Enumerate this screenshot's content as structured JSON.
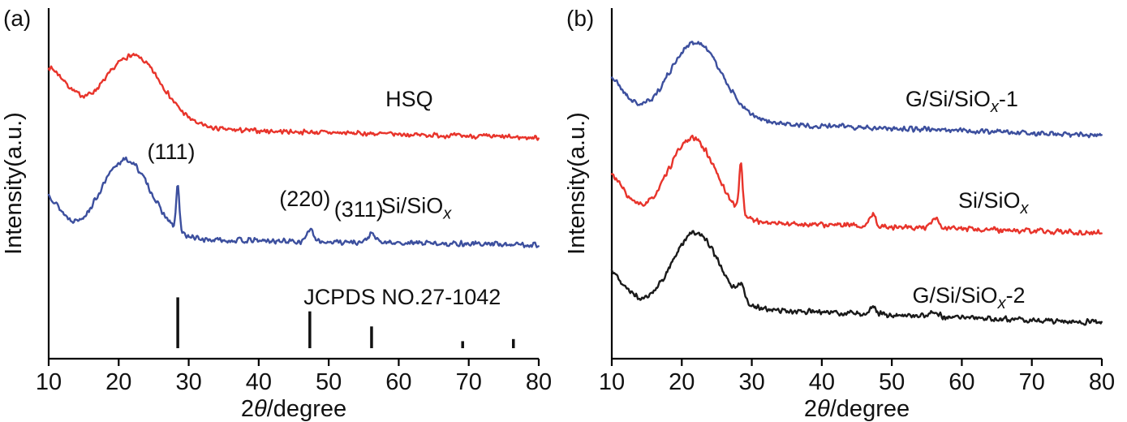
{
  "chart_data": [
    {
      "type": "line",
      "panel_label": "(a)",
      "xlabel_parts": [
        {
          "t": "2"
        },
        {
          "t": "θ",
          "italic": true
        },
        {
          "t": "/degree"
        }
      ],
      "ylabel": "Intensity(a.u.)",
      "xlim": [
        10,
        80
      ],
      "xticks": [
        10,
        20,
        30,
        40,
        50,
        60,
        70,
        80
      ],
      "grid": false,
      "axis_color": "#000000",
      "series": [
        {
          "name": "HSQ",
          "color": "#e8342b",
          "base": 0.665,
          "slope": -0.035,
          "noise": 0.008,
          "seed": 7,
          "peaks": [
            {
              "center": 9.5,
              "width": 3.2,
              "amp": 0.165
            },
            {
              "center": 22.0,
              "width": 4.2,
              "amp": 0.205
            }
          ],
          "label": {
            "parts": [
              {
                "t": "HSQ"
              }
            ],
            "x": 61.5,
            "y": 0.72
          }
        },
        {
          "name": "Si/SiOx",
          "color": "#3c4f9e",
          "base": 0.345,
          "slope": -0.02,
          "noise": 0.009,
          "seed": 13,
          "peaks": [
            {
              "center": 9.0,
              "width": 2.5,
              "amp": 0.13
            },
            {
              "center": 21.0,
              "width": 3.6,
              "amp": 0.225
            },
            {
              "center": 28.44,
              "width": 0.22,
              "amp": 0.13
            },
            {
              "center": 47.3,
              "width": 0.45,
              "amp": 0.034
            },
            {
              "center": 56.12,
              "width": 0.5,
              "amp": 0.024
            }
          ],
          "label": {
            "parts": [
              {
                "t": "Si/SiO"
              },
              {
                "t": "x",
                "sub": true
              }
            ],
            "x": 62.5,
            "y": 0.415
          }
        }
      ],
      "annotations": [
        {
          "text": "(111)",
          "x": 27.5,
          "y": 0.57
        },
        {
          "text": "(220)",
          "x": 46.6,
          "y": 0.435
        },
        {
          "text": "(311)",
          "x": 54.3,
          "y": 0.405
        }
      ],
      "reference": {
        "label": "JCPDS NO.27-1042",
        "label_x": 60.5,
        "label_y": 0.155,
        "color": "#111111",
        "sticks": [
          {
            "x": 28.44,
            "h": 0.145
          },
          {
            "x": 47.3,
            "h": 0.105
          },
          {
            "x": 56.12,
            "h": 0.062
          },
          {
            "x": 69.13,
            "h": 0.02
          },
          {
            "x": 76.38,
            "h": 0.026
          }
        ]
      }
    },
    {
      "type": "line",
      "panel_label": "(b)",
      "xlabel_parts": [
        {
          "t": "2"
        },
        {
          "t": "θ",
          "italic": true
        },
        {
          "t": "/degree"
        }
      ],
      "ylabel": "Intensity(a.u.)",
      "xlim": [
        10,
        80
      ],
      "xticks": [
        10,
        20,
        30,
        40,
        50,
        60,
        70,
        80
      ],
      "grid": false,
      "axis_color": "#000000",
      "series": [
        {
          "name": "G/Si/SiOx-1",
          "color": "#3c4f9e",
          "base": 0.685,
          "slope": -0.048,
          "noise": 0.009,
          "seed": 21,
          "peaks": [
            {
              "center": 9.0,
              "width": 2.6,
              "amp": 0.125
            },
            {
              "center": 22.0,
              "width": 3.8,
              "amp": 0.225
            }
          ],
          "label": {
            "parts": [
              {
                "t": "G/Si/SiO"
              },
              {
                "t": "x",
                "sub": true
              },
              {
                "t": "-1"
              }
            ],
            "x": 60.0,
            "y": 0.72
          }
        },
        {
          "name": "Si/SiOx",
          "color": "#e8342b",
          "base": 0.4,
          "slope": -0.042,
          "noise": 0.009,
          "seed": 33,
          "peaks": [
            {
              "center": 9.0,
              "width": 2.6,
              "amp": 0.135
            },
            {
              "center": 21.5,
              "width": 3.4,
              "amp": 0.235
            },
            {
              "center": 28.44,
              "width": 0.25,
              "amp": 0.14
            },
            {
              "center": 47.3,
              "width": 0.4,
              "amp": 0.036
            },
            {
              "center": 56.2,
              "width": 0.45,
              "amp": 0.028
            }
          ],
          "label": {
            "parts": [
              {
                "t": "Si/SiO"
              },
              {
                "t": "x",
                "sub": true
              }
            ],
            "x": 64.5,
            "y": 0.43
          }
        },
        {
          "name": "G/Si/SiOx-2",
          "color": "#1a1a1a",
          "base": 0.155,
          "slope": -0.052,
          "noise": 0.009,
          "seed": 47,
          "peaks": [
            {
              "center": 9.0,
              "width": 2.4,
              "amp": 0.105
            },
            {
              "center": 22.0,
              "width": 3.3,
              "amp": 0.215
            },
            {
              "center": 28.5,
              "width": 0.5,
              "amp": 0.04
            },
            {
              "center": 47.3,
              "width": 0.4,
              "amp": 0.026
            },
            {
              "center": 56.1,
              "width": 0.5,
              "amp": 0.016
            }
          ],
          "label": {
            "parts": [
              {
                "t": "G/Si/SiO"
              },
              {
                "t": "x",
                "sub": true
              },
              {
                "t": "-2"
              }
            ],
            "x": 61.0,
            "y": 0.16
          }
        }
      ],
      "annotations": [],
      "reference": null
    }
  ]
}
